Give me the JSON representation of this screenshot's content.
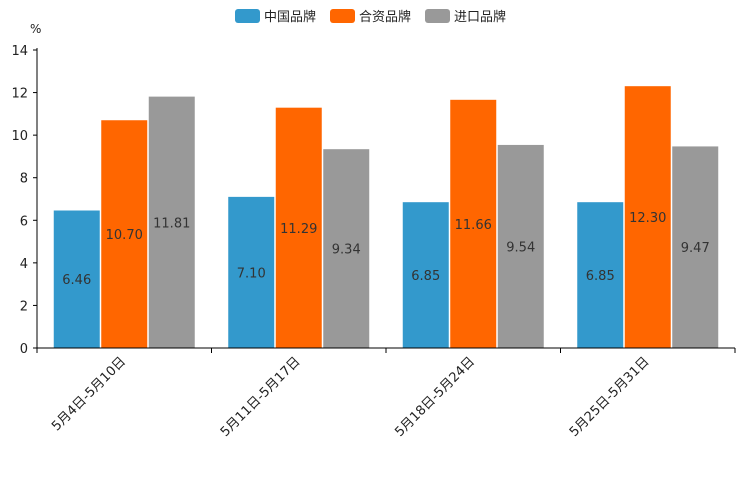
{
  "chart_data": {
    "type": "bar",
    "title": "",
    "unit": "%",
    "xlabel": "",
    "ylabel": "%",
    "ylim": [
      0,
      14
    ],
    "yticks": [
      0,
      2,
      4,
      6,
      8,
      10,
      12,
      14
    ],
    "grid": false,
    "legend_position": "top-center",
    "categories": [
      "5月4日-5月10日",
      "5月11日-5月17日",
      "5月18日-5月24日",
      "5月25日-5月31日"
    ],
    "series": [
      {
        "name": "中国品牌",
        "color": "#3399CC",
        "values": [
          6.46,
          7.1,
          6.85,
          6.85
        ],
        "labels": [
          "6.46",
          "7.10",
          "6.85",
          "6.85"
        ]
      },
      {
        "name": "合资品牌",
        "color": "#FF6600",
        "values": [
          10.7,
          11.29,
          11.66,
          12.3
        ],
        "labels": [
          "10.70",
          "11.29",
          "11.66",
          "12.30"
        ]
      },
      {
        "name": "进口品牌",
        "color": "#999999",
        "values": [
          11.81,
          9.34,
          9.54,
          9.47
        ],
        "labels": [
          "11.81",
          "9.34",
          "9.54",
          "9.47"
        ]
      }
    ]
  }
}
